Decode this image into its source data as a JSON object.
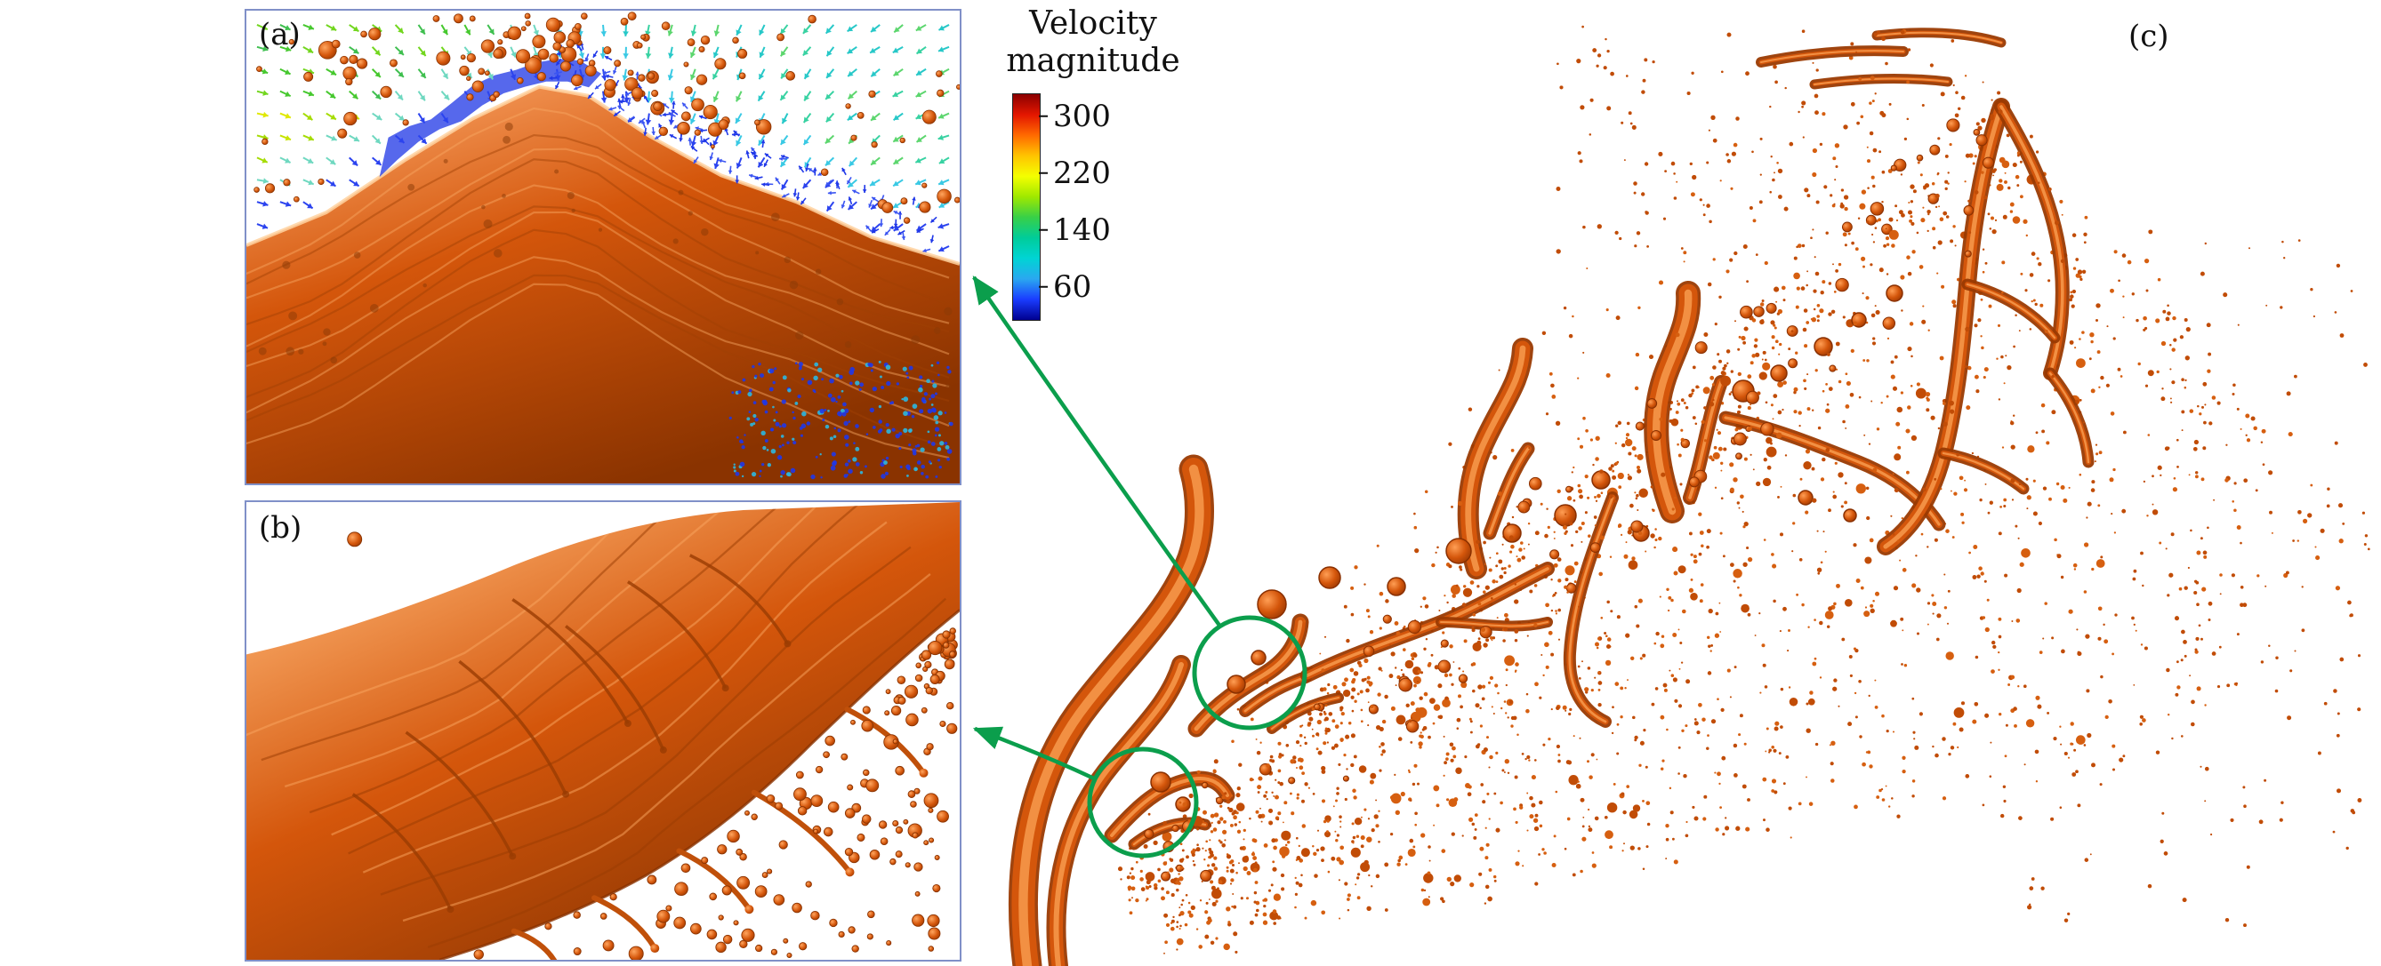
{
  "figure": {
    "panel_a": {
      "label": "(a)"
    },
    "panel_b": {
      "label": "(b)"
    },
    "panel_c": {
      "label": "(c)"
    },
    "colorbar": {
      "title_line1": "Velocity",
      "title_line2": "magnitude",
      "ticks": [
        "300",
        "220",
        "140",
        "60"
      ],
      "gradient": [
        "#8b0000",
        "#e31600",
        "#ff6a00",
        "#ffc400",
        "#f4ff00",
        "#9fe800",
        "#38d048",
        "#00cc9a",
        "#00d4d4",
        "#2aa8f0",
        "#1a3cff",
        "#000090"
      ]
    },
    "colors": {
      "fluid": "#d4560b",
      "fluid_dark": "#8a3300",
      "fluid_light": "#ffb074",
      "green": "#0b9e4c",
      "border": "#8090c8"
    }
  }
}
